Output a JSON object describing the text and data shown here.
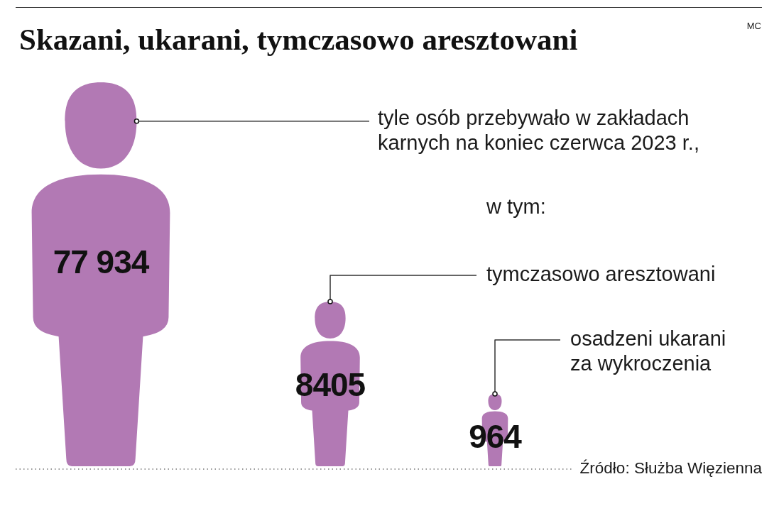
{
  "chart_data": {
    "type": "other",
    "title": "Skazani, ukarani, tymczasowo aresztowani",
    "categories": [
      "tyle osób przebywało w zakładach karnych na koniec czerwca 2023 r.",
      "tymczasowo aresztowani",
      "osadzeni ukarani za wykroczenia"
    ],
    "values": [
      77934,
      8405,
      964
    ],
    "value_labels": [
      "77 934",
      "8405",
      "964"
    ],
    "color": "#b279b4",
    "annotations": [
      ",",
      "w tym:",
      "MC",
      "Źródło: Służba Więzienna"
    ]
  }
}
